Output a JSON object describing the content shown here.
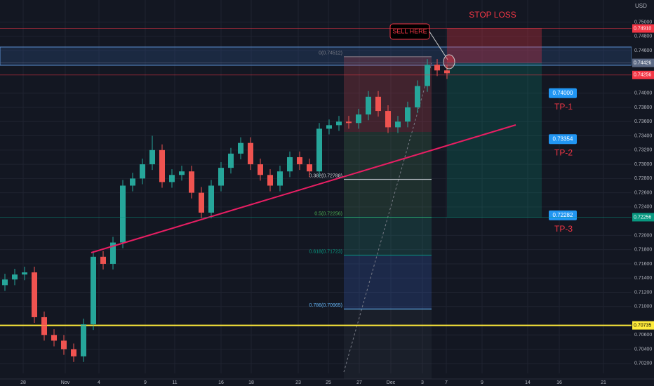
{
  "chart_data": {
    "type": "candlestick",
    "currency": "USD",
    "ylim": [
      0.7006,
      0.7531
    ],
    "yticks": [
      {
        "value": 0.75,
        "label": "0.75000"
      },
      {
        "value": 0.748,
        "label": "0.74800"
      },
      {
        "value": 0.746,
        "label": "0.74600"
      },
      {
        "value": 0.74,
        "label": "0.74000"
      },
      {
        "value": 0.738,
        "label": "0.73800"
      },
      {
        "value": 0.736,
        "label": "0.73600"
      },
      {
        "value": 0.734,
        "label": "0.73400"
      },
      {
        "value": 0.732,
        "label": "0.73200"
      },
      {
        "value": 0.73,
        "label": "0.73000"
      },
      {
        "value": 0.728,
        "label": "0.72800"
      },
      {
        "value": 0.726,
        "label": "0.72600"
      },
      {
        "value": 0.724,
        "label": "0.72400"
      },
      {
        "value": 0.72,
        "label": "0.72000"
      },
      {
        "value": 0.718,
        "label": "0.71800"
      },
      {
        "value": 0.716,
        "label": "0.71600"
      },
      {
        "value": 0.714,
        "label": "0.71400"
      },
      {
        "value": 0.712,
        "label": "0.71200"
      },
      {
        "value": 0.71,
        "label": "0.71000"
      },
      {
        "value": 0.706,
        "label": "0.70600"
      },
      {
        "value": 0.704,
        "label": "0.70400"
      },
      {
        "value": 0.702,
        "label": "0.70200"
      }
    ],
    "x_labels": [
      "28",
      "Nov",
      "4",
      "9",
      "11",
      "16",
      "18",
      "23",
      "25",
      "27",
      "Dec",
      "3",
      "7",
      "9",
      "14",
      "16",
      "21"
    ],
    "grid": true,
    "up_color": "#26a69a",
    "down_color": "#ef5350",
    "open": [
      0.713,
      0.7138,
      0.7145,
      0.7148,
      0.7085,
      0.706,
      0.7052,
      0.704,
      0.703,
      0.7075,
      0.717,
      0.716,
      0.719,
      0.727,
      0.728,
      0.73,
      0.732,
      0.7275,
      0.7285,
      0.729,
      0.726,
      0.7232,
      0.727,
      0.7295,
      0.7315,
      0.733,
      0.73,
      0.7285,
      0.727,
      0.729,
      0.731,
      0.73,
      0.729,
      0.735,
      0.7355,
      0.736,
      0.7358,
      0.737,
      0.7395,
      0.7375,
      0.7352,
      0.736,
      0.738,
      0.741,
      0.744,
      0.7432
    ],
    "high": [
      0.7146,
      0.7153,
      0.7156,
      0.7156,
      0.7093,
      0.7068,
      0.706,
      0.7048,
      0.7083,
      0.7178,
      0.7178,
      0.7198,
      0.7278,
      0.7288,
      0.7308,
      0.734,
      0.7328,
      0.7293,
      0.7298,
      0.7298,
      0.7268,
      0.7278,
      0.7303,
      0.7323,
      0.7338,
      0.7338,
      0.7308,
      0.7293,
      0.7298,
      0.7318,
      0.7318,
      0.7308,
      0.7358,
      0.7363,
      0.7368,
      0.7368,
      0.7378,
      0.7403,
      0.7403,
      0.7383,
      0.7368,
      0.7388,
      0.7418,
      0.7448,
      0.7448,
      0.744
    ],
    "low": [
      0.7122,
      0.713,
      0.7137,
      0.7077,
      0.7052,
      0.7044,
      0.7032,
      0.7022,
      0.7022,
      0.7067,
      0.7152,
      0.7152,
      0.7182,
      0.7262,
      0.7272,
      0.7292,
      0.7267,
      0.7267,
      0.7277,
      0.7252,
      0.7224,
      0.7224,
      0.7262,
      0.7287,
      0.7307,
      0.7292,
      0.7277,
      0.7262,
      0.7262,
      0.7282,
      0.7292,
      0.7282,
      0.7282,
      0.7342,
      0.7347,
      0.735,
      0.735,
      0.7362,
      0.7367,
      0.7344,
      0.7344,
      0.7352,
      0.7372,
      0.7402,
      0.7424,
      0.742
    ],
    "close": [
      0.7138,
      0.7145,
      0.7148,
      0.7085,
      0.706,
      0.7052,
      0.704,
      0.703,
      0.7075,
      0.717,
      0.716,
      0.719,
      0.727,
      0.728,
      0.73,
      0.732,
      0.7275,
      0.7285,
      0.729,
      0.726,
      0.7232,
      0.727,
      0.7295,
      0.7315,
      0.733,
      0.73,
      0.7285,
      0.727,
      0.729,
      0.731,
      0.73,
      0.729,
      0.735,
      0.7355,
      0.736,
      0.7358,
      0.737,
      0.7395,
      0.7375,
      0.7352,
      0.736,
      0.738,
      0.741,
      0.744,
      0.7432,
      0.7428
    ],
    "price_tags": [
      {
        "value": 0.7491,
        "label": "0.74910",
        "color": "#f23645"
      },
      {
        "value": 0.74426,
        "label": "0.74426",
        "color": "#5d6a85"
      },
      {
        "value": 0.74256,
        "label": "0.74256",
        "color": "#f23645"
      },
      {
        "value": 0.72256,
        "label": "0.72256",
        "color": "#089981"
      },
      {
        "value": 0.70735,
        "label": "0.70735",
        "color": "#ffeb3b"
      }
    ],
    "fib_levels": [
      {
        "value": 0.74512,
        "label": "0(0.74512)",
        "color": "#787b86"
      },
      {
        "value": 0.72788,
        "label": "0.382(0.72788)",
        "color": "#d1d4dc"
      },
      {
        "value": 0.72256,
        "label": "0.5(0.72256)",
        "color": "#4caf50"
      },
      {
        "value": 0.71723,
        "label": "0.618(0.71723)",
        "color": "#089981"
      },
      {
        "value": 0.70965,
        "label": "0.786(0.70965)",
        "color": "#64b5f6"
      }
    ],
    "targets": [
      {
        "value": 0.74,
        "label": "0.74000",
        "name": "TP-1"
      },
      {
        "value": 0.73354,
        "label": "0.73354",
        "name": "TP-2"
      },
      {
        "value": 0.72282,
        "label": "0.72282",
        "name": "TP-3"
      }
    ],
    "stop_loss_label": "STOP LOSS",
    "sell_label": "SELL HERE"
  }
}
